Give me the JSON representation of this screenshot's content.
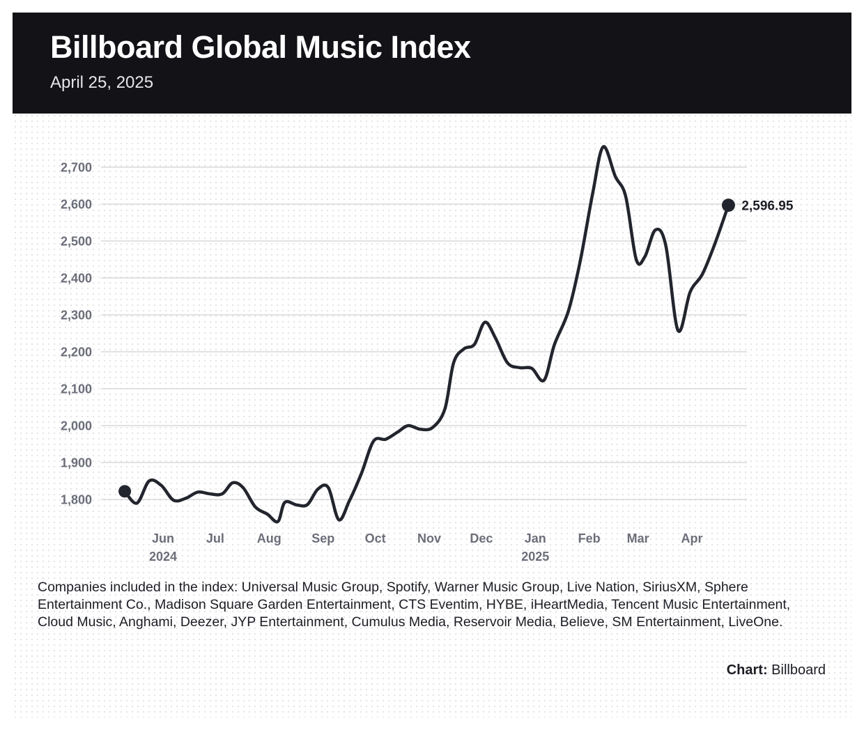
{
  "header": {
    "title": "Billboard Global Music Index",
    "date": "April 25, 2025"
  },
  "chart_data": {
    "type": "line",
    "title": "Billboard Global Music Index",
    "subtitle": "April 25, 2025",
    "xlabel": "",
    "ylabel": "",
    "ylim": [
      1730,
      2770
    ],
    "yticks": [
      1800,
      1900,
      2000,
      2100,
      2200,
      2300,
      2400,
      2500,
      2600,
      2700
    ],
    "ytick_labels": [
      "1,800",
      "1,900",
      "2,000",
      "2,100",
      "2,200",
      "2,300",
      "2,400",
      "2,500",
      "2,600",
      "2,700"
    ],
    "grid": true,
    "xlim": [
      "2024-05-10",
      "2025-04-25"
    ],
    "xticks": [
      {
        "date": "2024-06-01",
        "label": "Jun",
        "year": "2024"
      },
      {
        "date": "2024-07-01",
        "label": "Jul",
        "year": ""
      },
      {
        "date": "2024-08-01",
        "label": "Aug",
        "year": ""
      },
      {
        "date": "2024-09-01",
        "label": "Sep",
        "year": ""
      },
      {
        "date": "2024-10-01",
        "label": "Oct",
        "year": ""
      },
      {
        "date": "2024-11-01",
        "label": "Nov",
        "year": ""
      },
      {
        "date": "2024-12-01",
        "label": "Dec",
        "year": ""
      },
      {
        "date": "2025-01-01",
        "label": "Jan",
        "year": "2025"
      },
      {
        "date": "2025-02-01",
        "label": "Feb",
        "year": ""
      },
      {
        "date": "2025-03-01",
        "label": "Mar",
        "year": ""
      },
      {
        "date": "2025-04-01",
        "label": "Apr",
        "year": ""
      }
    ],
    "series": [
      {
        "name": "",
        "color": "#23252e",
        "points": [
          {
            "x": "2024-05-10",
            "y": 1822
          },
          {
            "x": "2024-05-17",
            "y": 1790
          },
          {
            "x": "2024-05-24",
            "y": 1850
          },
          {
            "x": "2024-05-31",
            "y": 1838
          },
          {
            "x": "2024-06-07",
            "y": 1798
          },
          {
            "x": "2024-06-14",
            "y": 1803
          },
          {
            "x": "2024-06-21",
            "y": 1820
          },
          {
            "x": "2024-06-28",
            "y": 1815
          },
          {
            "x": "2024-07-05",
            "y": 1815
          },
          {
            "x": "2024-07-11",
            "y": 1845
          },
          {
            "x": "2024-07-17",
            "y": 1832
          },
          {
            "x": "2024-07-24",
            "y": 1780
          },
          {
            "x": "2024-07-31",
            "y": 1760
          },
          {
            "x": "2024-08-06",
            "y": 1740
          },
          {
            "x": "2024-08-10",
            "y": 1792
          },
          {
            "x": "2024-08-17",
            "y": 1785
          },
          {
            "x": "2024-08-23",
            "y": 1786
          },
          {
            "x": "2024-08-29",
            "y": 1828
          },
          {
            "x": "2024-09-04",
            "y": 1832
          },
          {
            "x": "2024-09-10",
            "y": 1745
          },
          {
            "x": "2024-09-16",
            "y": 1795
          },
          {
            "x": "2024-09-23",
            "y": 1870
          },
          {
            "x": "2024-09-30",
            "y": 1958
          },
          {
            "x": "2024-10-07",
            "y": 1963
          },
          {
            "x": "2024-10-14",
            "y": 1983
          },
          {
            "x": "2024-10-20",
            "y": 2000
          },
          {
            "x": "2024-10-27",
            "y": 1990
          },
          {
            "x": "2024-11-03",
            "y": 1995
          },
          {
            "x": "2024-11-10",
            "y": 2045
          },
          {
            "x": "2024-11-15",
            "y": 2170
          },
          {
            "x": "2024-11-21",
            "y": 2208
          },
          {
            "x": "2024-11-27",
            "y": 2220
          },
          {
            "x": "2024-12-03",
            "y": 2280
          },
          {
            "x": "2024-12-09",
            "y": 2238
          },
          {
            "x": "2024-12-16",
            "y": 2170
          },
          {
            "x": "2024-12-23",
            "y": 2157
          },
          {
            "x": "2024-12-30",
            "y": 2155
          },
          {
            "x": "2025-01-06",
            "y": 2123
          },
          {
            "x": "2025-01-12",
            "y": 2220
          },
          {
            "x": "2025-01-20",
            "y": 2310
          },
          {
            "x": "2025-01-27",
            "y": 2450
          },
          {
            "x": "2025-02-03",
            "y": 2630
          },
          {
            "x": "2025-02-09",
            "y": 2755
          },
          {
            "x": "2025-02-16",
            "y": 2675
          },
          {
            "x": "2025-02-22",
            "y": 2620
          },
          {
            "x": "2025-02-28",
            "y": 2450
          },
          {
            "x": "2025-03-05",
            "y": 2458
          },
          {
            "x": "2025-03-11",
            "y": 2530
          },
          {
            "x": "2025-03-17",
            "y": 2488
          },
          {
            "x": "2025-03-24",
            "y": 2258
          },
          {
            "x": "2025-03-31",
            "y": 2362
          },
          {
            "x": "2025-04-07",
            "y": 2410
          },
          {
            "x": "2025-04-14",
            "y": 2490
          },
          {
            "x": "2025-04-22",
            "y": 2596.95
          }
        ]
      }
    ],
    "annotations": [
      {
        "x": "2025-04-22",
        "y": 2596.95,
        "text": "2,596.95"
      }
    ]
  },
  "footnote": {
    "text": "Companies included in the index: Universal Music Group, Spotify, Warner Music Group, Live Nation, SiriusXM, Sphere Entertainment Co., Madison Square Garden Entertainment, CTS Eventim, HYBE, iHeartMedia, Tencent Music Entertainment, Cloud Music, Anghami, Deezer, JYP Entertainment, Cumulus Media, Reservoir Media, Believe, SM Entertainment, LiveOne."
  },
  "credit": {
    "label": "Chart:",
    "source": "Billboard"
  },
  "colors": {
    "header_bg": "#121217",
    "line": "#23252e",
    "grid": "#d9d9dc",
    "tick_text": "#6b6e79"
  }
}
